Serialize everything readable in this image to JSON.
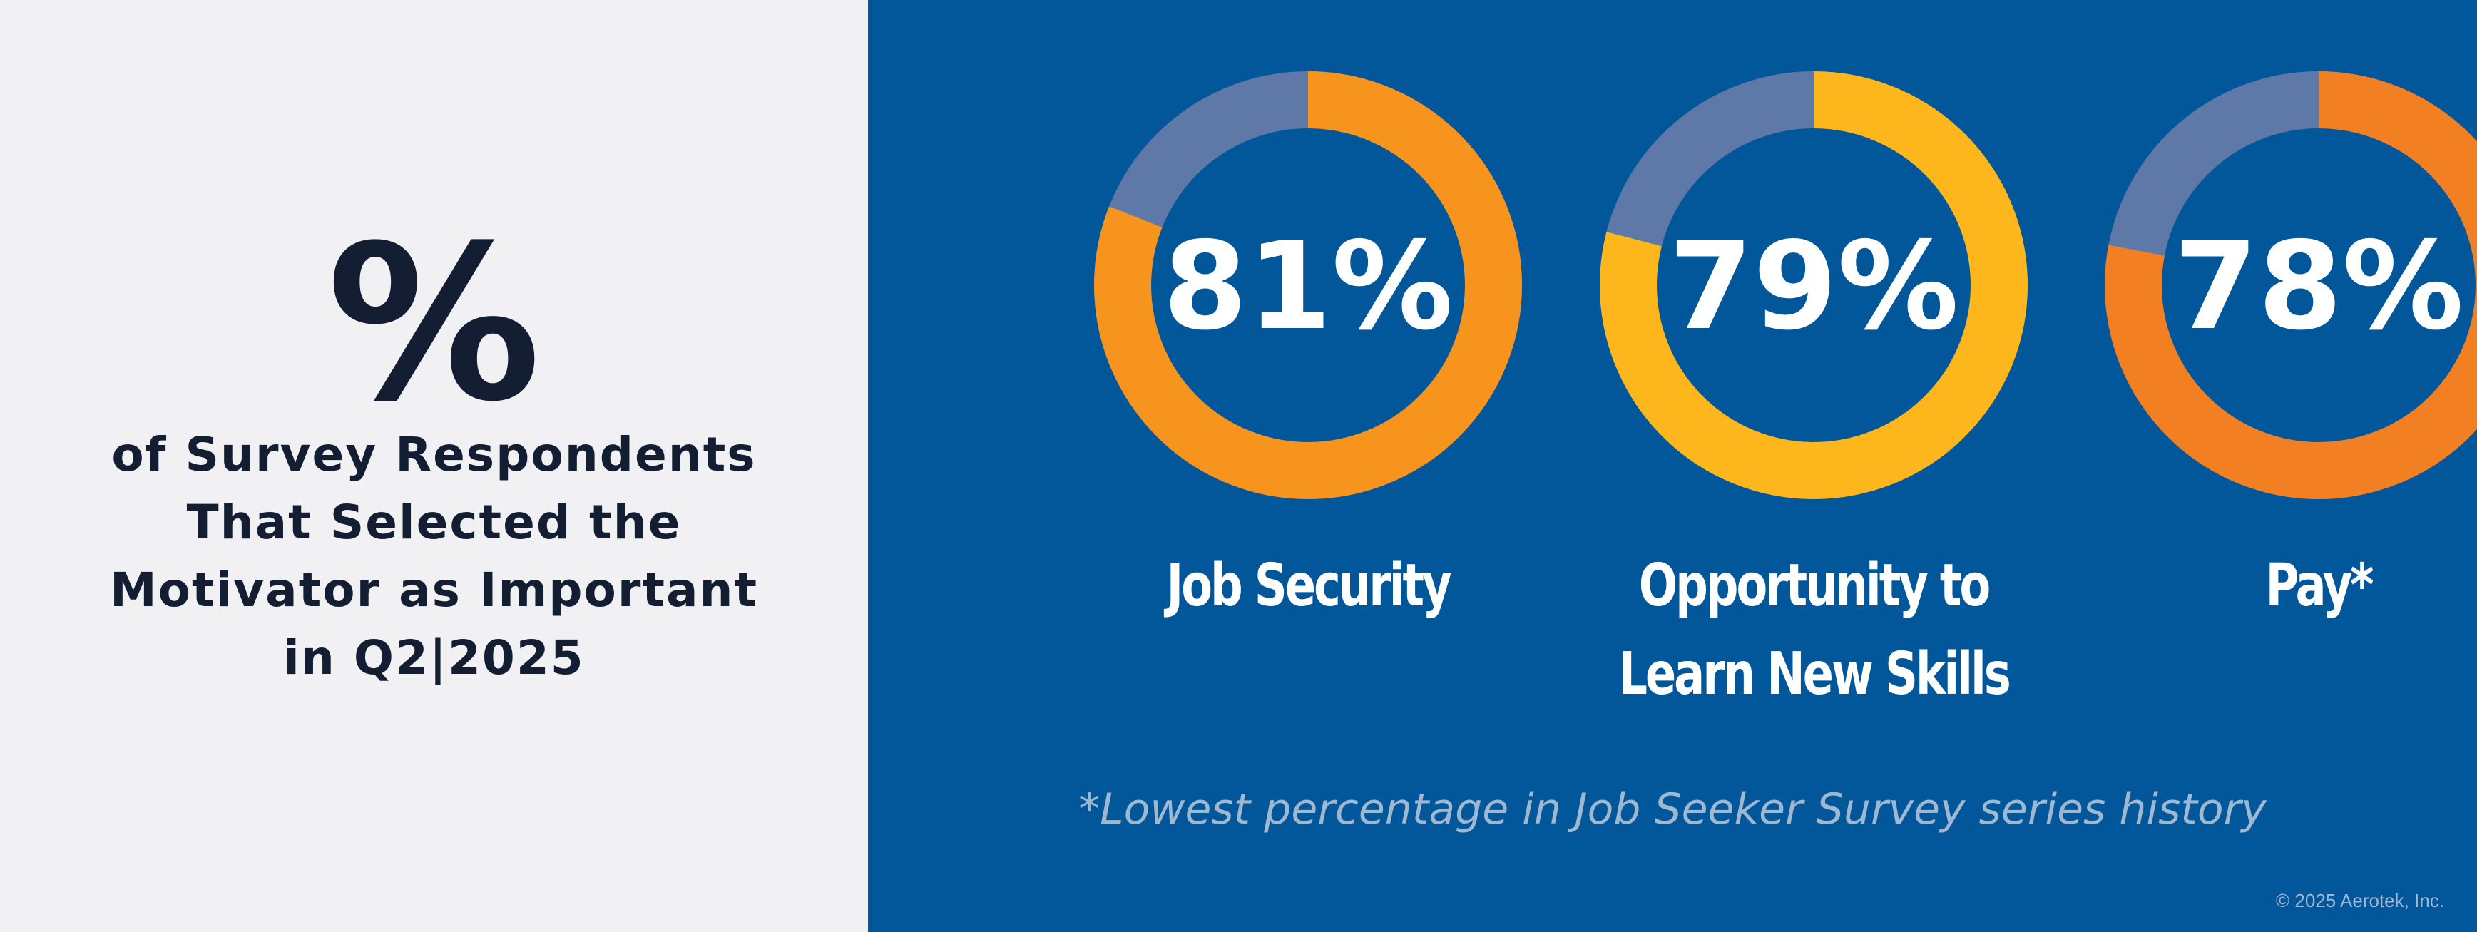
{
  "left": {
    "symbol": "%",
    "lines": [
      "of Survey Respondents",
      "That Selected the",
      "Motivator as Important",
      "in Q2|2025"
    ]
  },
  "chart_data": {
    "type": "pie",
    "items": [
      {
        "value": 81,
        "value_label": "81%",
        "label_lines": [
          "Job Security"
        ],
        "color": "#f7941d"
      },
      {
        "value": 79,
        "value_label": "79%",
        "label_lines": [
          "Opportunity to",
          "Learn New Skills"
        ],
        "color": "#fdb71c"
      },
      {
        "value": 78,
        "value_label": "78%",
        "label_lines": [
          "Pay*"
        ],
        "color": "#f27f22"
      }
    ],
    "remainder_color": "#5e78a8"
  },
  "footnote": "*Lowest percentage in Job Seeker Survey series history",
  "copyright": "© 2025 Aerotek, Inc."
}
